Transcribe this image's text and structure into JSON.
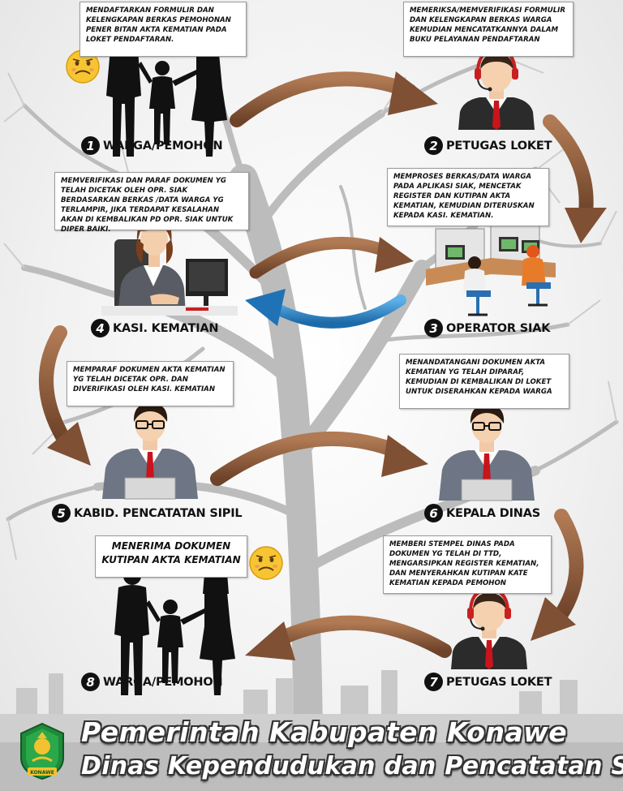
{
  "steps": [
    {
      "num": "1",
      "label": "WARGA/PEMOHON",
      "text": "MENDAFTARKAN FORMULIR DAN KELENGKAPAN BERKAS PEMOHONAN PENER     BITAN AKTA KEMATIAN PADA LOKET     PENDAFTARAN."
    },
    {
      "num": "2",
      "label": "PETUGAS LOKET",
      "text": "MEMERIKSA/MEMVERIFIKASI FORMULIR DAN KELENGKAPAN BERKAS WARGA KEMUDIAN MENCATATKANNYA DALAM BUKU PELAYANAN PENDAFTARAN"
    },
    {
      "num": "3",
      "label": "OPERATOR SIAK",
      "text": "MEMPROSES BERKAS/DATA WARGA PADA APLIKASI SIAK, MENCETAK REGISTER DAN KUTIPAN AKTA KEMATIAN, KEMUDIAN DITERUSKAN KEPADA KASI. KEMATIAN."
    },
    {
      "num": "4",
      "label": "KASI. KEMATIAN",
      "text": "MEMVERIFIKASI DAN PARAF DOKUMEN YG TELAH DICETAK OLEH OPR. SIAK BERDASARKAN BERKAS /DATA WARGA YG TERLAMPIR, JIKA TERDAPAT KESALAHAN AKAN DI      KEMBALIKAN PD OPR. SIAK UNTUK   DIPER        BAIKI."
    },
    {
      "num": "5",
      "label": "KABID. PENCATATAN SIPIL",
      "text": "MEMPARAF DOKUMEN AKTA KEMATIAN YG TELAH DICETAK OPR. DAN DIVERIFIKASI OLEH KASI. KEMATIAN"
    },
    {
      "num": "6",
      "label": "KEPALA DINAS",
      "text": "MENANDATANGANI DOKUMEN AKTA KEMATIAN YG TELAH DIPARAF, KEMUDIAN DI KEMBALIKAN DI LOKET UNTUK DISERAHKAN KEPADA WARGA"
    },
    {
      "num": "7",
      "label": "PETUGAS LOKET",
      "text": "MEMBERI STEMPEL DINAS PADA DOKUMEN YG TELAH DI TTD, MENGARSIPKAN REGISTER KEMATIAN, DAN MENYERAHKAN KUTIPAN KATE KEMATIAN KEPADA         PEMOHON"
    },
    {
      "num": "8",
      "label": "WARGA/PEMOHON",
      "text": "MENERIMA DOKUMEN KUTIPAN AKTA KEMATIAN"
    }
  ],
  "footer": {
    "line1": "Pemerintah Kabupaten Konawe",
    "line2": "Dinas Kependudukan dan Pencatatan Sipil",
    "logo_text": "KONAWE"
  },
  "colors": {
    "arrow_brown": "#8a5a3c",
    "arrow_blue": "#2a86c8",
    "badge": "#111111"
  }
}
